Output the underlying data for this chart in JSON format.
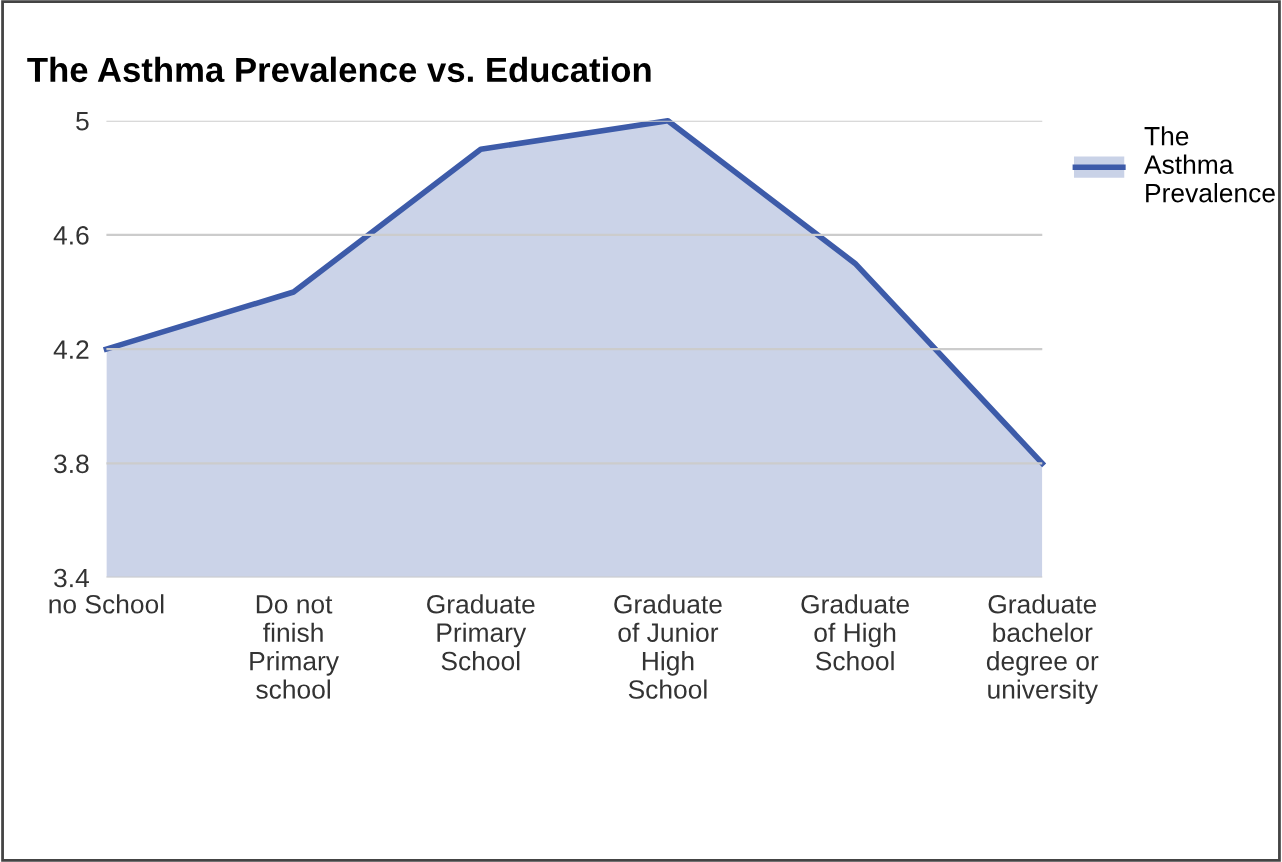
{
  "chart_data": {
    "type": "area",
    "title": "The Asthma Prevalence vs. Education",
    "categories": [
      "no School",
      "Do not\nfinish\nPrimary\nschool",
      "Graduate\nPrimary\nSchool",
      "Graduate\nof Junior\nHigh\nSchool",
      "Graduate\nof High\nSchool",
      "Graduate\nbachelor\ndegree or\nuniversity"
    ],
    "series": [
      {
        "name": "The\nAsthma\nPrevalence",
        "color": "#3d5ba9",
        "values": [
          4.2,
          4.4,
          4.9,
          5.0,
          4.5,
          3.8
        ]
      }
    ],
    "ylim": [
      3.4,
      5
    ],
    "yticks": [
      3.4,
      3.8,
      4.2,
      4.6,
      5
    ],
    "grid": "y",
    "legend": "top right"
  }
}
